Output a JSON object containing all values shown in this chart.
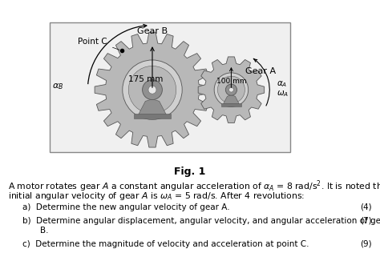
{
  "background_color": "#ffffff",
  "fig_caption": "Fig. 1",
  "gear_b_label": "Gear B",
  "gear_a_label": "Gear A",
  "point_c_label": "Point C",
  "radius_b_label": "175 mm",
  "radius_a_label": "100 mm",
  "item_a": "Determine the new angular velocity of gear A.",
  "item_b": "Determine angular displacement, angular velocity, and angular acceleration of gear",
  "item_b2": "B.",
  "item_c": "Determine the magnitude of velocity and acceleration at point C.",
  "mark_a": "(4)",
  "mark_b": "(7)",
  "mark_c": "(9)",
  "gear_b_teeth_color": "#999999",
  "gear_b_body_color": "#b8b8b8",
  "gear_b_inner_color": "#d0d0d0",
  "gear_b_hub_color": "#909090",
  "gear_a_teeth_color": "#999999",
  "gear_a_body_color": "#b8b8b8",
  "gear_a_inner_color": "#d0d0d0",
  "gear_a_hub_color": "#909090",
  "box_bg": "#f0f0f0",
  "box_edge": "#888888"
}
